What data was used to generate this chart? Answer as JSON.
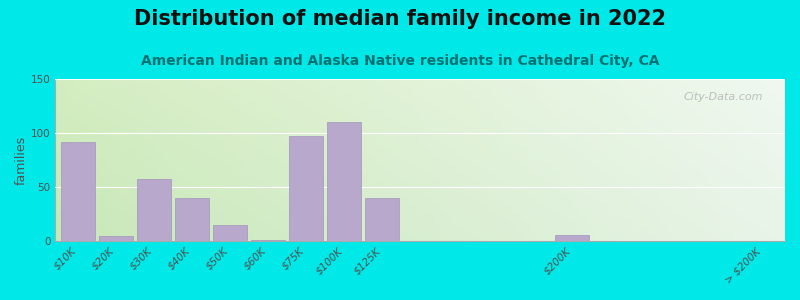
{
  "title": "Distribution of median family income in 2022",
  "subtitle": "American Indian and Alaska Native residents in Cathedral City, CA",
  "ylabel": "families",
  "categories": [
    "$10K",
    "$20K",
    "$30K",
    "$40K",
    "$50K",
    "$60K",
    "$75K",
    "$100K",
    "$125K",
    "$200K",
    "> $200K"
  ],
  "values": [
    92,
    5,
    57,
    40,
    15,
    1,
    97,
    110,
    40,
    6,
    0
  ],
  "bar_color": "#b8a8cc",
  "bar_edge_color": "#9a88b8",
  "bg_outer": "#00e8e8",
  "bg_plot_topleft": "#d4edc0",
  "bg_plot_topright": "#f0f8f0",
  "bg_plot_bottomleft": "#c8e8b8",
  "bg_plot_bottomright": "#e8f4e8",
  "ylim": [
    0,
    150
  ],
  "yticks": [
    0,
    50,
    100,
    150
  ],
  "title_fontsize": 15,
  "subtitle_fontsize": 10,
  "ylabel_fontsize": 9,
  "tick_fontsize": 7.5,
  "watermark": "City-Data.com",
  "x_positions": [
    0,
    1,
    2,
    3,
    4,
    5,
    6,
    7,
    8,
    13,
    18
  ],
  "bar_width": 0.9
}
